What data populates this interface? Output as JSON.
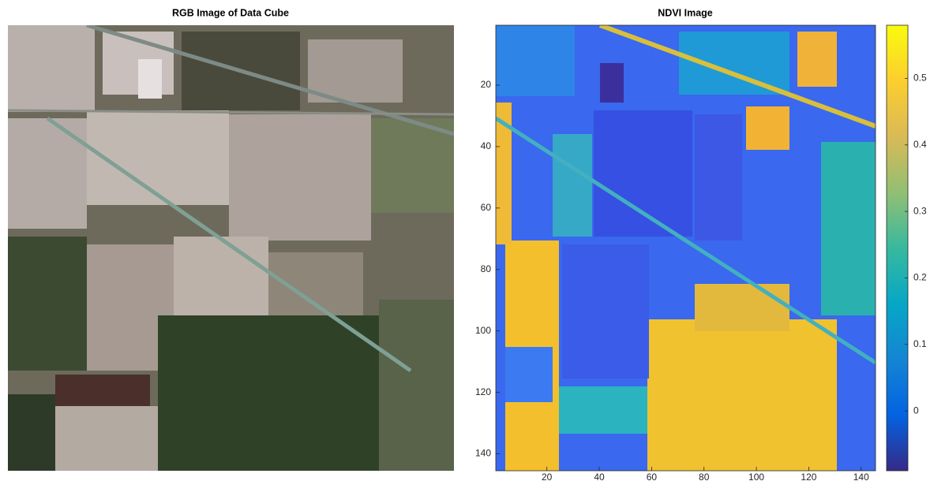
{
  "chart_data": [
    {
      "type": "image",
      "title": "RGB Image of Data Cube"
    },
    {
      "type": "heatmap",
      "title": "NDVI Image",
      "xlim": [
        0.5,
        145.5
      ],
      "ylim": [
        145.5,
        0.5
      ],
      "xticks": [
        20,
        40,
        60,
        80,
        100,
        120,
        140
      ],
      "yticks": [
        20,
        40,
        60,
        80,
        100,
        120,
        140
      ],
      "colorbar": {
        "clim": [
          -0.09,
          0.58
        ],
        "ticks": [
          0,
          0.1,
          0.2,
          0.3,
          0.4,
          0.5
        ]
      }
    }
  ]
}
